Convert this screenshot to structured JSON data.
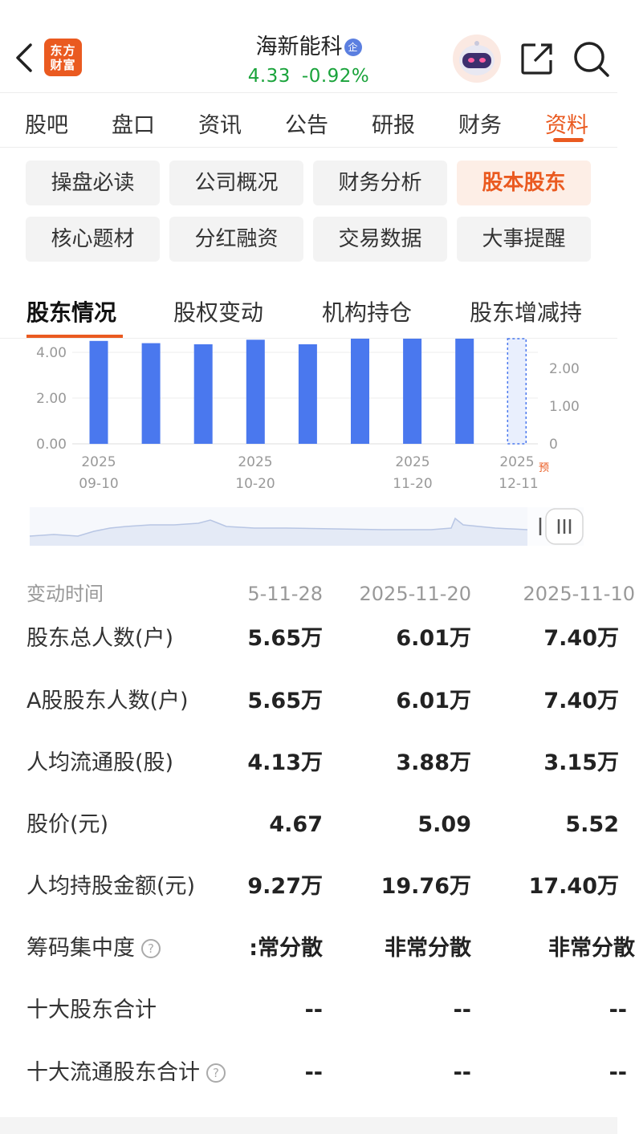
{
  "header": {
    "logo_line1": "东方",
    "logo_line2": "财富",
    "stock_name": "海新能科",
    "badge": "企",
    "price": "4.33",
    "change_pct": "-0.92%"
  },
  "main_tabs": [
    {
      "label": "股吧"
    },
    {
      "label": "盘口"
    },
    {
      "label": "资讯"
    },
    {
      "label": "公告"
    },
    {
      "label": "研报"
    },
    {
      "label": "财务"
    },
    {
      "label": "资料",
      "active": true
    }
  ],
  "sub_buttons": [
    {
      "label": "操盘必读"
    },
    {
      "label": "公司概况"
    },
    {
      "label": "财务分析"
    },
    {
      "label": "股本股东",
      "active": true
    },
    {
      "label": "核心题材"
    },
    {
      "label": "分红融资"
    },
    {
      "label": "交易数据"
    },
    {
      "label": "大事提醒"
    }
  ],
  "section_tabs": [
    {
      "label": "股东情况",
      "active": true
    },
    {
      "label": "股权变动"
    },
    {
      "label": "机构持仓"
    },
    {
      "label": "股东增减持"
    }
  ],
  "chart_data": {
    "type": "bar",
    "left_axis_ticks": [
      "4.00",
      "2.00",
      "0.00"
    ],
    "right_axis_ticks": [
      "2.00",
      "1.00",
      "0"
    ],
    "x_tick_years": [
      "2025",
      "2025",
      "2025",
      "2025"
    ],
    "x_tick_dates": [
      "09-10",
      "10-20",
      "11-20",
      "12-11"
    ],
    "forecast_tag": "预",
    "values": [
      4.5,
      4.4,
      4.35,
      4.55,
      4.35,
      4.8,
      4.8,
      4.8,
      4.8
    ],
    "forecast_last": true,
    "bar_color": "#4a78ee",
    "ylim": [
      0,
      4.8
    ]
  },
  "table": {
    "header_label": "变动时间",
    "dates": [
      "5-11-28",
      "2025-11-20",
      "2025-11-10"
    ],
    "rows": [
      {
        "label": "股东总人数(户)",
        "values": [
          "5.65万",
          "6.01万",
          "7.40万"
        ]
      },
      {
        "label": "A股股东人数(户)",
        "values": [
          "5.65万",
          "6.01万",
          "7.40万"
        ]
      },
      {
        "label": "人均流通股(股)",
        "values": [
          "4.13万",
          "3.88万",
          "3.15万"
        ]
      },
      {
        "label": "股价(元)",
        "values": [
          "4.67",
          "5.09",
          "5.52"
        ]
      },
      {
        "label": "人均持股金额(元)",
        "values": [
          "9.27万",
          "19.76万",
          "17.40万"
        ]
      },
      {
        "label": "筹码集中度",
        "help": "?",
        "values": ":常分散",
        "values_list": [
          ":常分散",
          "非常分散",
          "非常分散"
        ]
      },
      {
        "label": "十大股东合计",
        "values_list": [
          "--",
          "--",
          "--"
        ]
      },
      {
        "label": "十大流通股东合计",
        "help": "?",
        "values_list": [
          "--",
          "--",
          "--"
        ]
      }
    ]
  },
  "colors": {
    "accent": "#ea5a20",
    "down_green": "#1aa33b",
    "bar_blue": "#4a78ee"
  }
}
